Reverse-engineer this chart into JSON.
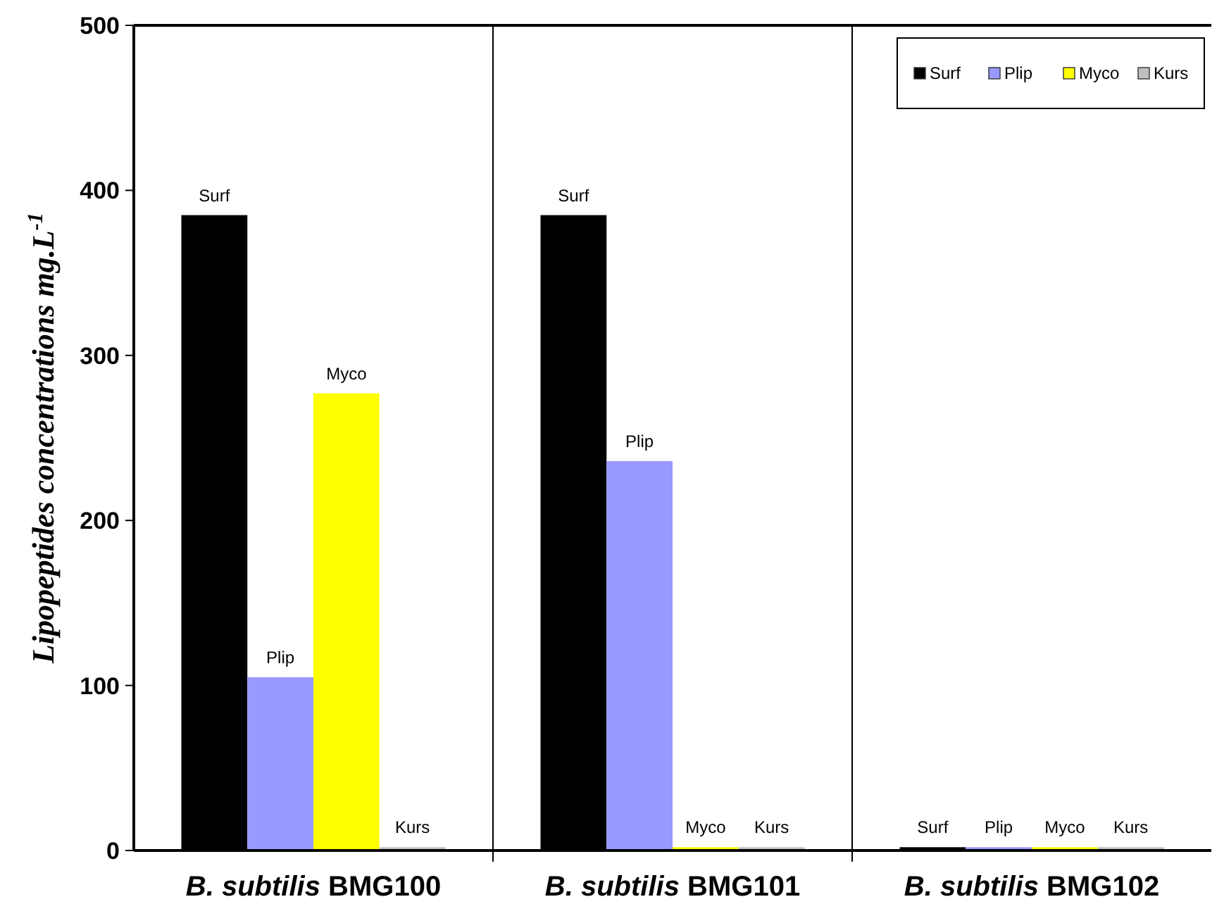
{
  "chart_data": {
    "type": "bar",
    "ylabel": "Lipopeptides concentrations mg.L$^{-1}$",
    "categories": [
      "B. subtilis BMG100",
      "B. subtilis BMG101",
      "B. subtilis BMG102"
    ],
    "series": [
      {
        "name": "Surf",
        "color": "#000000",
        "values": [
          385,
          385,
          2
        ]
      },
      {
        "name": "Plip",
        "color": "#9999ff",
        "values": [
          105,
          236,
          2
        ]
      },
      {
        "name": "Myco",
        "color": "#ffff00",
        "values": [
          277,
          2,
          2
        ]
      },
      {
        "name": "Kurs",
        "color": "#c0c0c0",
        "values": [
          2,
          2,
          2
        ]
      }
    ],
    "ylim": [
      0,
      500
    ],
    "yticks": [
      0,
      100,
      200,
      300,
      400,
      500
    ],
    "grid": false,
    "legend": "top right"
  }
}
